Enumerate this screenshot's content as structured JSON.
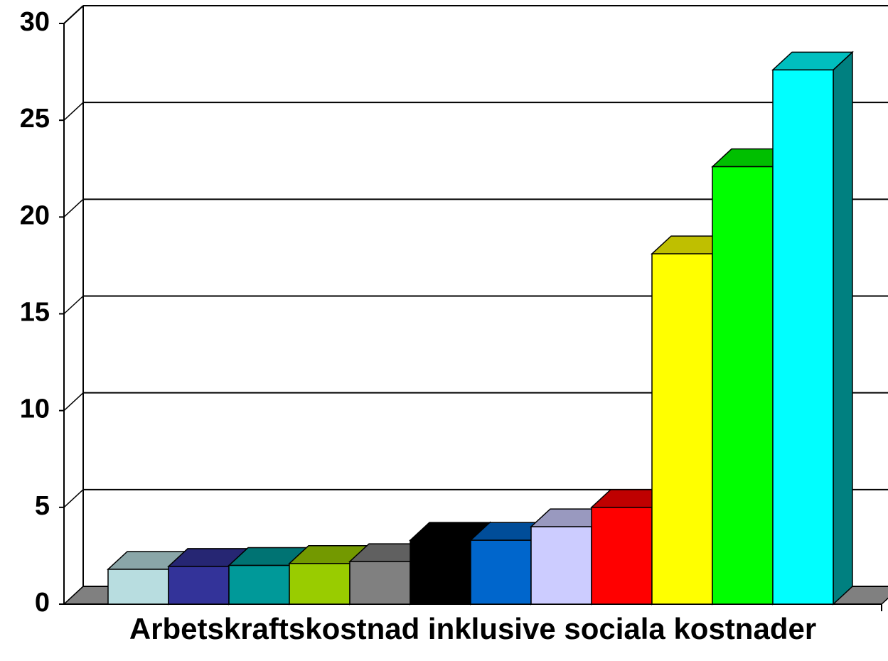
{
  "chart_data": {
    "type": "bar3d",
    "title": "Arbetskraftskostnad inklusive sociala kostnader",
    "categories": [
      null,
      null,
      null,
      null,
      null,
      null,
      null,
      null,
      null,
      null,
      null,
      null
    ],
    "values": [
      1.8,
      1.95,
      2.0,
      2.1,
      2.2,
      3.3,
      3.3,
      4.0,
      5.0,
      18.1,
      22.6,
      27.6
    ],
    "colors": [
      "#b8dde0",
      "#333399",
      "#009999",
      "#99cc00",
      "#808080",
      "#000000",
      "#0066cc",
      "#ccccff",
      "#ff0000",
      "#ffff00",
      "#00ff00",
      "#00ffff"
    ],
    "ylim": [
      0,
      30
    ],
    "yticks": [
      0,
      5,
      10,
      15,
      20,
      25,
      30
    ],
    "grid": true
  }
}
